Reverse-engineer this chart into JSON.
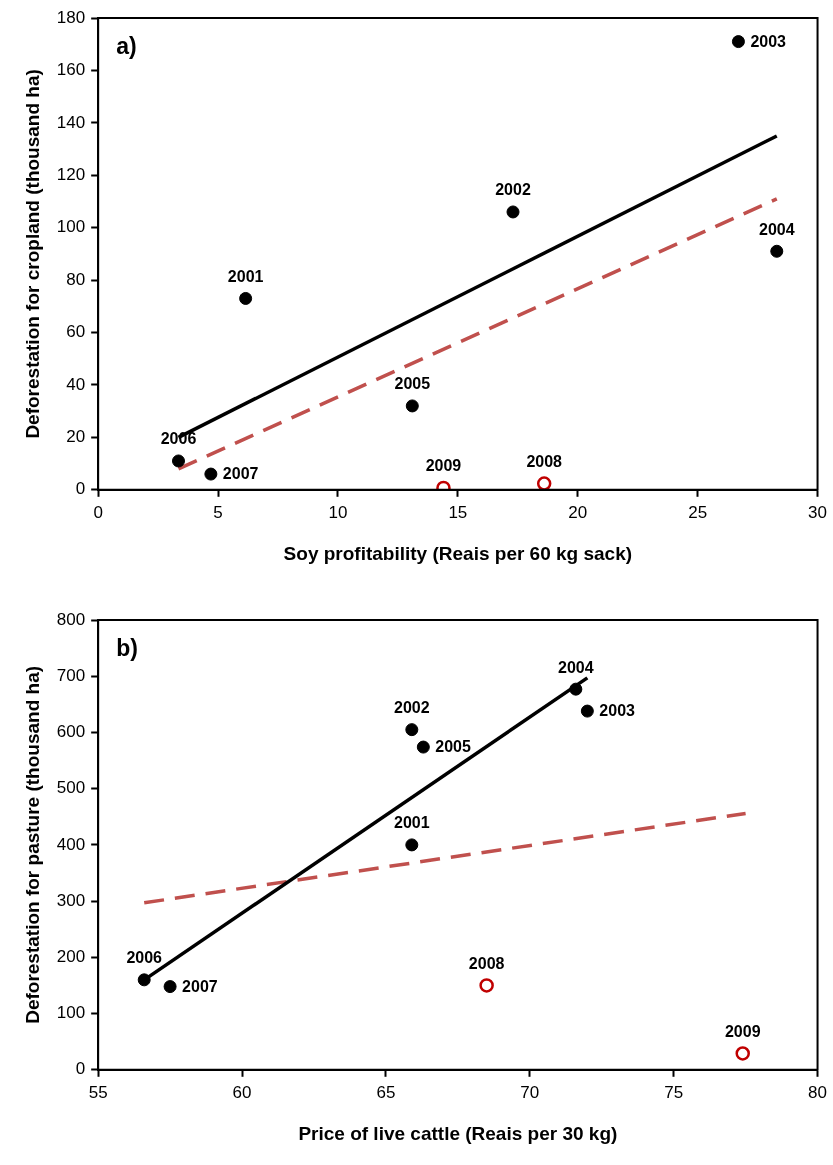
{
  "chart_data": [
    {
      "type": "scatter",
      "title": "a)",
      "xlabel": "Soy profitability (Reais per 60 kg sack)",
      "ylabel": "Deforestation for cropland (thousand ha)",
      "xlim": [
        0,
        30
      ],
      "xticks": [
        0,
        5,
        10,
        15,
        20,
        25,
        30
      ],
      "ylim": [
        0,
        180
      ],
      "yticks": [
        0,
        20,
        40,
        60,
        80,
        100,
        120,
        140,
        160,
        180
      ],
      "grid": false,
      "legend": false,
      "marker": "circle",
      "series": [
        {
          "color": "#000000",
          "x": [
            6.15,
            17.3,
            26.7,
            28.3,
            13.1,
            3.35,
            4.7
          ],
          "values": [
            73,
            106,
            171,
            91,
            32,
            11,
            6
          ]
        },
        {
          "color": "#c00000",
          "marker": "circle-open",
          "x": [
            18.6,
            14.4
          ],
          "values": [
            2.4,
            0.7
          ]
        },
        {
          "type": "line",
          "marker": "none",
          "color": "#000000",
          "line_style": "solid",
          "x": [
            3.35,
            28.3
          ],
          "values": [
            20,
            135
          ]
        },
        {
          "type": "line",
          "marker": "none",
          "color": "#c0504d",
          "line_style": "dashed",
          "x": [
            3.35,
            28.3
          ],
          "values": [
            8,
            111
          ]
        }
      ],
      "annotations": [
        {
          "text": "2001",
          "x": 6.15,
          "y": 73
        },
        {
          "text": "2002",
          "x": 17.3,
          "y": 106
        },
        {
          "text": "2003",
          "x": 26.7,
          "y": 171
        },
        {
          "text": "2004",
          "x": 28.3,
          "y": 91
        },
        {
          "text": "2005",
          "x": 13.1,
          "y": 32
        },
        {
          "text": "2006",
          "x": 3.35,
          "y": 11
        },
        {
          "text": "2007",
          "x": 4.7,
          "y": 6
        },
        {
          "text": "2008",
          "x": 18.6,
          "y": 2.4
        },
        {
          "text": "2009",
          "x": 14.4,
          "y": 0.7
        }
      ]
    },
    {
      "type": "scatter",
      "title": "b)",
      "xlabel": "Price of live cattle (Reais per 30 kg)",
      "ylabel": "Deforestation for pasture (thousand ha)",
      "xlim": [
        55,
        80
      ],
      "xticks": [
        55,
        60,
        65,
        70,
        75,
        80
      ],
      "ylim": [
        0,
        800
      ],
      "yticks": [
        0,
        100,
        200,
        300,
        400,
        500,
        600,
        700,
        800
      ],
      "grid": false,
      "legend": false,
      "marker": "circle",
      "series": [
        {
          "color": "#000000",
          "x": [
            65.9,
            65.9,
            72.0,
            71.6,
            66.3,
            56.6,
            57.5
          ],
          "values": [
            400,
            605,
            638,
            677,
            574,
            160,
            148
          ]
        },
        {
          "color": "#c00000",
          "marker": "circle-open",
          "x": [
            68.5,
            77.4
          ],
          "values": [
            150,
            29
          ]
        },
        {
          "type": "line",
          "marker": "none",
          "color": "#000000",
          "line_style": "solid",
          "x": [
            56.6,
            72.0
          ],
          "values": [
            160,
            697
          ]
        },
        {
          "type": "line",
          "marker": "none",
          "color": "#c0504d",
          "line_style": "dashed",
          "x": [
            56.6,
            77.5
          ],
          "values": [
            297,
            456
          ]
        }
      ],
      "annotations": [
        {
          "text": "2001",
          "x": 65.9,
          "y": 400
        },
        {
          "text": "2002",
          "x": 65.9,
          "y": 605
        },
        {
          "text": "2003",
          "x": 72.0,
          "y": 638
        },
        {
          "text": "2004",
          "x": 71.6,
          "y": 677
        },
        {
          "text": "2005",
          "x": 66.3,
          "y": 574
        },
        {
          "text": "2006",
          "x": 56.6,
          "y": 160
        },
        {
          "text": "2007",
          "x": 57.5,
          "y": 148
        },
        {
          "text": "2008",
          "x": 68.5,
          "y": 150
        },
        {
          "text": "2009",
          "x": 77.4,
          "y": 29
        }
      ]
    }
  ]
}
